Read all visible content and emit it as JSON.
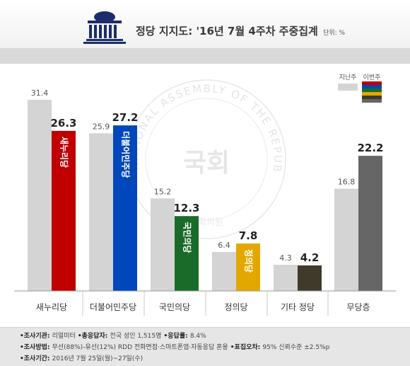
{
  "header": {
    "title": "정당 지지도: '16년 7월 4주차 주중집계",
    "unit": "단위: %"
  },
  "legend": {
    "prev": "지난주",
    "this": "이번주"
  },
  "watermark": {
    "arc_text": "NATIONAL ASSEMBLY OF THE REPUBLIC OF KOREA",
    "center_text": "국회",
    "bottom_text": "국회의원"
  },
  "chart_data": {
    "type": "bar",
    "categories": [
      "새누리당",
      "더불어민주당",
      "국민의당",
      "정의당",
      "기타 정당",
      "무당층"
    ],
    "series": [
      {
        "name": "지난주",
        "values": [
          31.4,
          25.9,
          15.2,
          6.4,
          4.3,
          16.8
        ],
        "color": "#d4d4d4"
      },
      {
        "name": "이번주",
        "values": [
          26.3,
          27.2,
          12.3,
          7.8,
          4.2,
          22.2
        ],
        "colors": [
          "#c00000",
          "#0047bb",
          "#1a6b2a",
          "#e3a800",
          "#3f3a2a",
          "#666666"
        ]
      }
    ],
    "bar_labels": [
      "새누리당",
      "더불어민주당",
      "국민의당",
      "정의당",
      "",
      ""
    ],
    "ylim": [
      0,
      35
    ],
    "grid": false,
    "legend_position": "top-right",
    "legend_swatch_colors": [
      "#c00000",
      "#0047bb",
      "#1a6b2a",
      "#e3a800",
      "#3f3a2a",
      "#666666"
    ]
  },
  "footer": {
    "line1": [
      {
        "label": "조사기관",
        "value": "리얼미터"
      },
      {
        "label": "총응답자",
        "value": "전국 성인 1,515명"
      },
      {
        "label": "응답률",
        "value": "8.4%"
      }
    ],
    "line2": [
      {
        "label": "조사방법",
        "value": "무선(88%)-유선(12%) RDD 전화면접·스마트폰앱·자동응답 혼용"
      },
      {
        "label": "표집오차",
        "value": "95% 신뢰수준 ±2.5%p"
      }
    ],
    "line3": [
      {
        "label": "조사기간",
        "value": "2016년  7월  25일(월)~27일(수)"
      }
    ]
  }
}
